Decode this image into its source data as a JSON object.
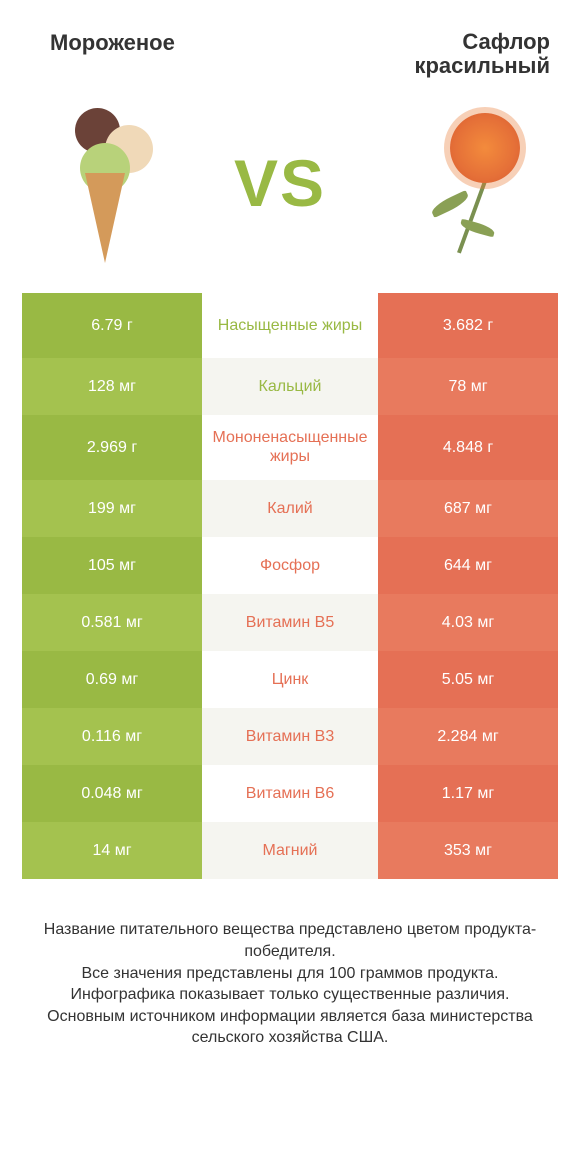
{
  "colors": {
    "green": "#99b944",
    "green_alt": "#a4c24f",
    "orange": "#e57055",
    "orange_alt": "#e87a5e",
    "mid_bg_a": "#ffffff",
    "mid_bg_b": "#f5f5f0",
    "label_green": "#99b944",
    "label_orange": "#e57055",
    "vs_text": "#99b944"
  },
  "header": {
    "left_title": "Мороженое",
    "right_title_line1": "Сафлор",
    "right_title_line2": "красильный",
    "vs": "VS"
  },
  "rows": [
    {
      "left": "6.79 г",
      "label": "Насыщенные жиры",
      "right": "3.682 г",
      "winner": "left",
      "tall": true
    },
    {
      "left": "128 мг",
      "label": "Кальций",
      "right": "78 мг",
      "winner": "left",
      "tall": false
    },
    {
      "left": "2.969 г",
      "label": "Мононенасыщенные жиры",
      "right": "4.848 г",
      "winner": "right",
      "tall": true
    },
    {
      "left": "199 мг",
      "label": "Калий",
      "right": "687 мг",
      "winner": "right",
      "tall": false
    },
    {
      "left": "105 мг",
      "label": "Фосфор",
      "right": "644 мг",
      "winner": "right",
      "tall": false
    },
    {
      "left": "0.581 мг",
      "label": "Витамин B5",
      "right": "4.03 мг",
      "winner": "right",
      "tall": false
    },
    {
      "left": "0.69 мг",
      "label": "Цинк",
      "right": "5.05 мг",
      "winner": "right",
      "tall": false
    },
    {
      "left": "0.116 мг",
      "label": "Витамин B3",
      "right": "2.284 мг",
      "winner": "right",
      "tall": false
    },
    {
      "left": "0.048 мг",
      "label": "Витамин B6",
      "right": "1.17 мг",
      "winner": "right",
      "tall": false
    },
    {
      "left": "14 мг",
      "label": "Магний",
      "right": "353 мг",
      "winner": "right",
      "tall": false
    }
  ],
  "footer": {
    "line1": "Название питательного вещества представлено цветом продукта-победителя.",
    "line2": "Все значения представлены для 100 граммов продукта.",
    "line3": "Инфографика показывает только существенные различия.",
    "line4": "Основным источником информации является база министерства сельского хозяйства США."
  }
}
